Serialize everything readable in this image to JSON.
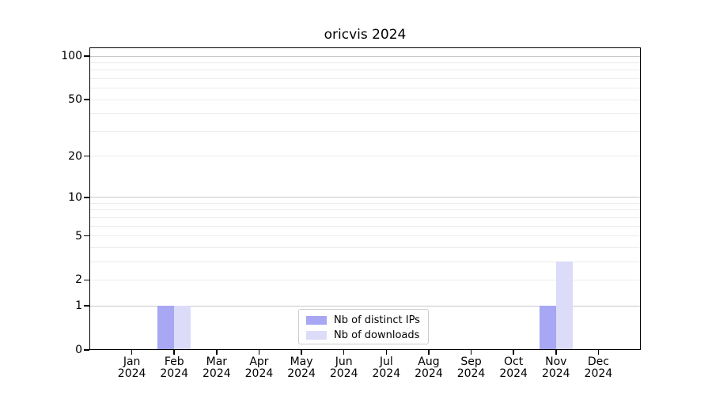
{
  "chart_data": {
    "type": "bar",
    "title": "oricvis 2024",
    "categories": [
      "Jan",
      "Feb",
      "Mar",
      "Apr",
      "May",
      "Jun",
      "Jul",
      "Aug",
      "Sep",
      "Oct",
      "Nov",
      "Dec"
    ],
    "category_year": "2024",
    "series": [
      {
        "name": "Nb of distinct IPs",
        "color": "#a7a7f4",
        "values": [
          0,
          1,
          0,
          0,
          0,
          0,
          0,
          0,
          0,
          0,
          1,
          0
        ]
      },
      {
        "name": "Nb of downloads",
        "color": "#dcdcf9",
        "values": [
          0,
          1,
          0,
          0,
          0,
          0,
          0,
          0,
          0,
          0,
          3,
          0
        ]
      }
    ],
    "y_axis": {
      "scale": "log1p",
      "tick_values": [
        0,
        1,
        2,
        5,
        10,
        20,
        50,
        100
      ],
      "major_grid_values": [
        1,
        10,
        100
      ],
      "minor_grid_values": [
        2,
        3,
        4,
        5,
        6,
        7,
        8,
        9,
        20,
        30,
        40,
        50,
        60,
        70,
        80,
        90
      ],
      "ylim": [
        0,
        115
      ]
    },
    "grid": true,
    "legend_position": "lower center"
  },
  "colors": {
    "background": "#ffffff",
    "spine": "#000000",
    "text": "#000000",
    "major_grid": "#c8c8c8",
    "minor_grid": "#ececec",
    "legend_border": "#cccccc"
  }
}
